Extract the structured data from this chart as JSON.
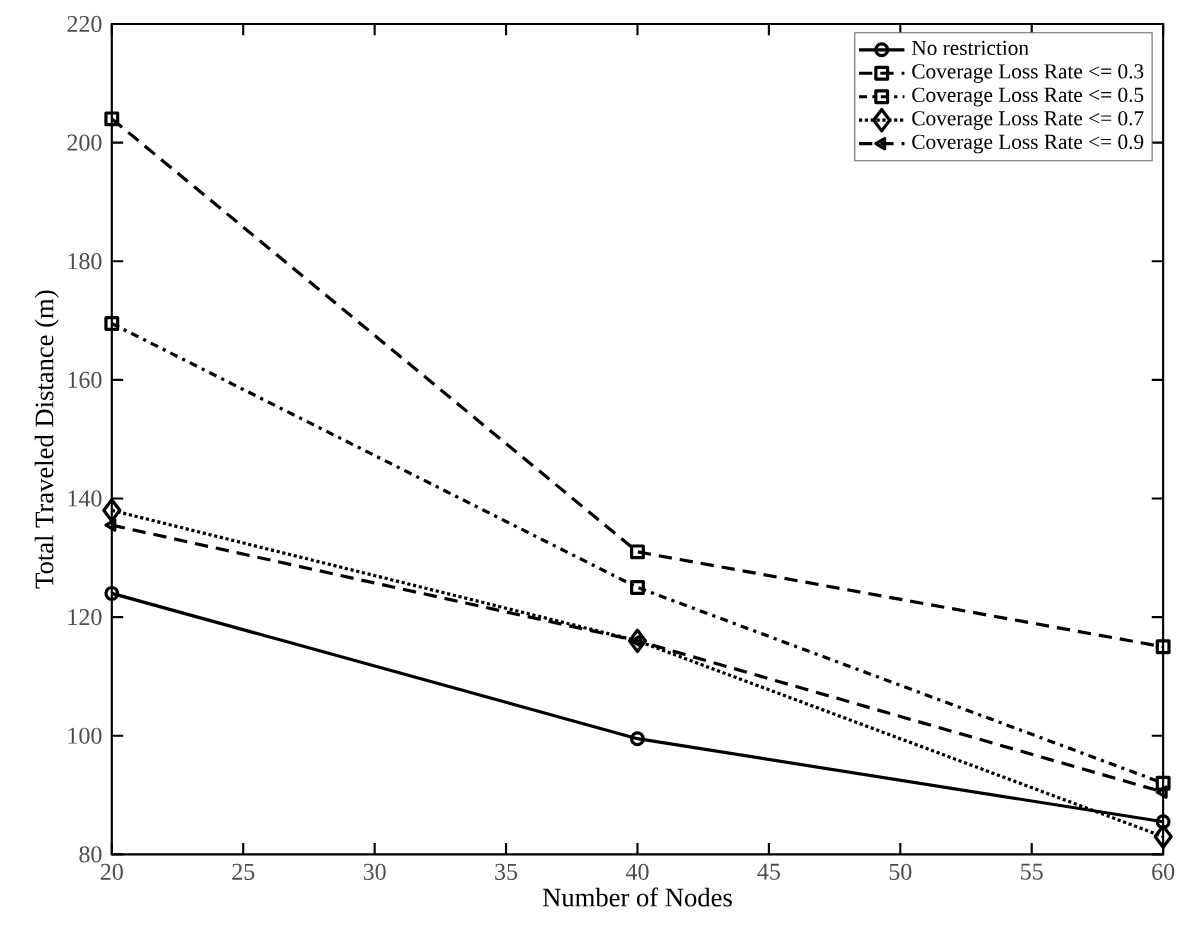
{
  "chart_data": {
    "type": "line",
    "xlabel": "Number of Nodes",
    "ylabel": "Total Traveled Distance (m)",
    "x": [
      20,
      40,
      60
    ],
    "xlim": [
      20,
      60
    ],
    "xticks": [
      20,
      25,
      30,
      35,
      40,
      45,
      50,
      55,
      60
    ],
    "ylim": [
      80,
      220
    ],
    "yticks": [
      80,
      100,
      120,
      140,
      160,
      180,
      200,
      220
    ],
    "legend": "top right",
    "series": [
      {
        "name": "No restriction",
        "color": "#000000",
        "values": [
          124,
          99.5,
          85.5
        ],
        "marker": "circle",
        "line_style": "solid"
      },
      {
        "name": "Coverage Loss Rate <= 0.3",
        "color": "#000000",
        "values": [
          204,
          131,
          115
        ],
        "marker": "square",
        "line_style": "dashed"
      },
      {
        "name": "Coverage Loss Rate <= 0.5",
        "color": "#000000",
        "values": [
          169.5,
          125,
          92
        ],
        "marker": "square",
        "line_style": "dashdot"
      },
      {
        "name": "Coverage Loss Rate <= 0.7",
        "color": "#000000",
        "values": [
          138,
          116,
          83
        ],
        "marker": "diamond",
        "line_style": "dotted"
      },
      {
        "name": "Coverage Loss Rate <= 0.9",
        "color": "#000000",
        "values": [
          135.5,
          116,
          90.5
        ],
        "marker": "triangle",
        "line_style": "dashed"
      }
    ]
  }
}
